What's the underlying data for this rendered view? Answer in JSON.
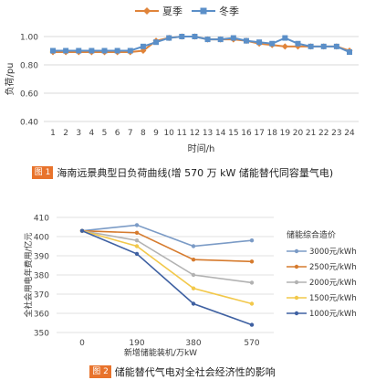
{
  "figure1": {
    "caption_number": "图 1",
    "caption_text": "海南远景典型日负荷曲线(增 570 万 kW 储能替代同容量气电)",
    "chart_data": {
      "type": "line",
      "x": [
        1,
        2,
        3,
        4,
        5,
        6,
        7,
        8,
        9,
        10,
        11,
        12,
        13,
        14,
        15,
        16,
        17,
        18,
        19,
        20,
        21,
        22,
        23,
        24
      ],
      "xlabel": "时间/h",
      "ylabel": "负荷/pu",
      "ylim": [
        0.4,
        1.0
      ],
      "yticks": [
        "0.40",
        "0.60",
        "0.80",
        "1.00"
      ],
      "grid": "horizontal",
      "legend_position": "top",
      "series": [
        {
          "name": "夏季",
          "color": "#e0843a",
          "marker": "diamond",
          "values": [
            0.89,
            0.89,
            0.89,
            0.89,
            0.89,
            0.89,
            0.89,
            0.9,
            0.97,
            0.99,
            1.0,
            1.0,
            0.98,
            0.98,
            0.98,
            0.97,
            0.95,
            0.94,
            0.93,
            0.93,
            0.93,
            0.93,
            0.93,
            0.9
          ]
        },
        {
          "name": "冬季",
          "color": "#5b8fc8",
          "marker": "square",
          "values": [
            0.9,
            0.9,
            0.9,
            0.9,
            0.9,
            0.9,
            0.9,
            0.93,
            0.96,
            0.99,
            1.0,
            1.0,
            0.98,
            0.98,
            0.99,
            0.97,
            0.96,
            0.95,
            0.99,
            0.95,
            0.93,
            0.93,
            0.93,
            0.89
          ]
        }
      ]
    }
  },
  "figure2": {
    "caption_number": "图 2",
    "caption_text": "储能替代气电对全社会经济性的影响",
    "legend_title": "储能综合造价",
    "chart_data": {
      "type": "line",
      "x": [
        0,
        190,
        380,
        570
      ],
      "xticks": [
        "0",
        "190",
        "380",
        "570"
      ],
      "xlabel": "新增储能装机/万kW",
      "ylabel": "全社会用电年费用/亿元",
      "ylim": [
        350,
        410
      ],
      "yticks": [
        "350",
        "360",
        "370",
        "380",
        "390",
        "400",
        "410"
      ],
      "grid": "horizontal",
      "legend_position": "right",
      "series": [
        {
          "name": "3000元/kWh",
          "color": "#7b9bc6",
          "values": [
            403,
            406,
            395,
            398
          ]
        },
        {
          "name": "2500元/kWh",
          "color": "#d67b2e",
          "values": [
            403,
            402,
            388,
            387
          ]
        },
        {
          "name": "2000元/kWh",
          "color": "#b2b2b2",
          "values": [
            403,
            398,
            380,
            376
          ]
        },
        {
          "name": "1500元/kWh",
          "color": "#f2c84a",
          "values": [
            403,
            395,
            373,
            365
          ]
        },
        {
          "name": "1000元/kWh",
          "color": "#3f61a2",
          "values": [
            403,
            391,
            365,
            354
          ]
        }
      ]
    }
  }
}
